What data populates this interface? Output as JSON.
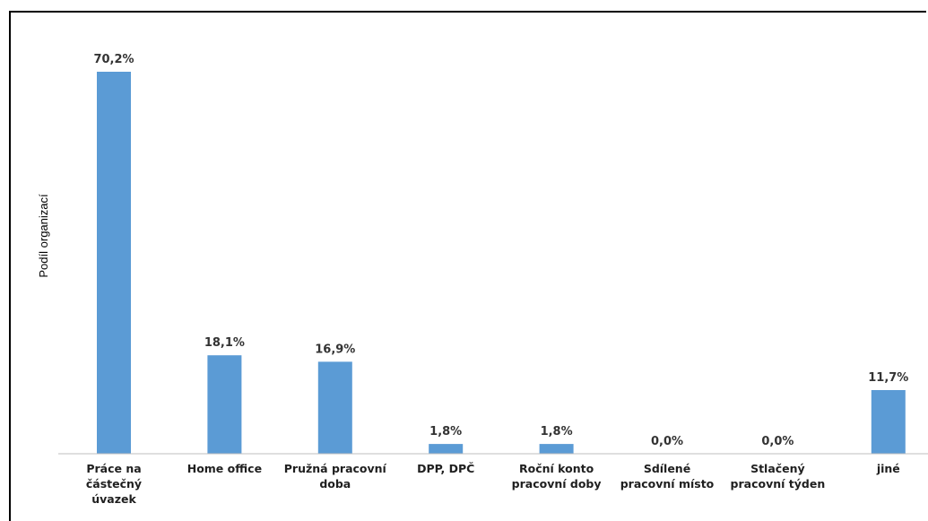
{
  "chart_data": {
    "type": "bar",
    "title": "",
    "xlabel": "",
    "ylabel": "Podíl organizací",
    "categories": [
      [
        "Práce na",
        "částečný",
        "úvazek"
      ],
      [
        "Home office"
      ],
      [
        "Pružná pracovní",
        "doba"
      ],
      [
        "DPP, DPČ"
      ],
      [
        "Roční konto",
        "pracovní doby"
      ],
      [
        "Sdílené",
        "pracovní místo"
      ],
      [
        "Stlačený",
        "pracovní týden"
      ],
      [
        "jiné"
      ]
    ],
    "values": [
      70.2,
      18.1,
      16.9,
      1.8,
      1.8,
      0.0,
      0.0,
      11.7
    ],
    "value_labels": [
      "70,2%",
      "18,1%",
      "16,9%",
      "1,8%",
      "1,8%",
      "0,0%",
      "0,0%",
      "11,7%"
    ],
    "ylim": [
      0,
      75
    ],
    "grid": false,
    "legend": "none",
    "colors": {
      "bar": "#5B9BD5",
      "axis": "#bfbfbf",
      "frame": "#000000"
    }
  }
}
